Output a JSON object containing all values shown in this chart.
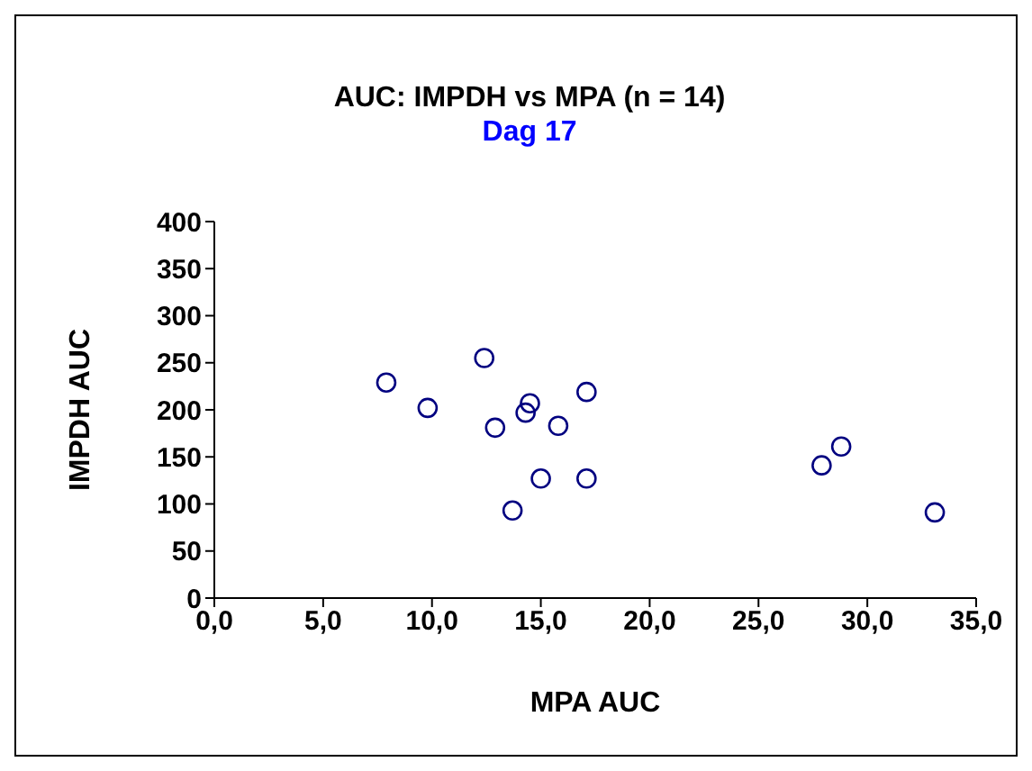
{
  "chart_data": {
    "type": "scatter",
    "title": "AUC: IMPDH vs MPA (n = 14)",
    "subtitle": "Dag 17",
    "xlabel": "MPA AUC",
    "ylabel": "IMPDH AUC",
    "x": [
      7.9,
      9.8,
      12.4,
      12.9,
      14.5,
      14.3,
      15.8,
      17.1,
      15.0,
      17.1,
      13.7,
      27.9,
      28.8,
      33.1
    ],
    "series": [
      {
        "color": "#000080",
        "values": [
          229,
          202,
          255,
          181,
          207,
          197,
          183,
          219,
          127,
          127,
          93,
          141,
          161,
          91
        ]
      }
    ],
    "xlim": [
      0,
      35
    ],
    "xticks": [
      {
        "value": 0,
        "label": "0,0"
      },
      {
        "value": 5,
        "label": "5,0"
      },
      {
        "value": 10,
        "label": "10,0"
      },
      {
        "value": 15,
        "label": "15,0"
      },
      {
        "value": 20,
        "label": "20,0"
      },
      {
        "value": 25,
        "label": "25,0"
      },
      {
        "value": 30,
        "label": "30,0"
      },
      {
        "value": 35,
        "label": "35,0"
      }
    ],
    "ylim": [
      0,
      400
    ],
    "yticks": [
      0,
      50,
      100,
      150,
      200,
      250,
      300,
      350,
      400
    ],
    "marker": "circle",
    "grid": false,
    "legend": false
  }
}
